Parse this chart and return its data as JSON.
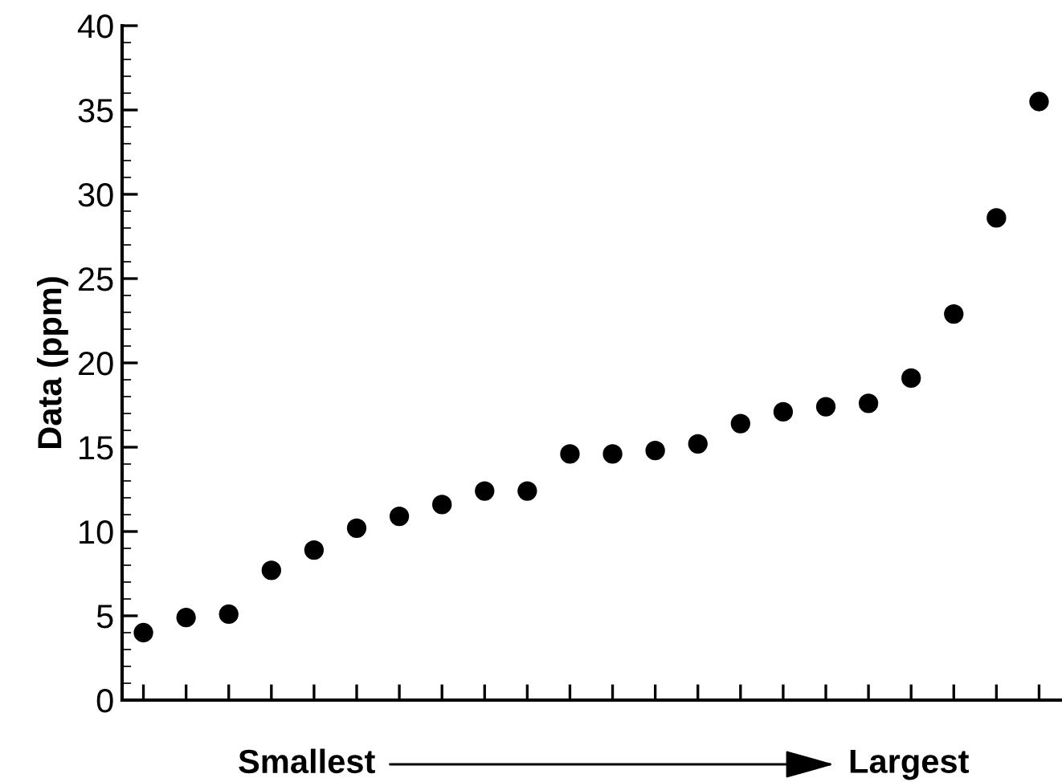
{
  "chart_data": {
    "type": "scatter",
    "ylabel": "Data (ppm)",
    "annotations": [
      "Smallest",
      "Largest"
    ],
    "categories": [
      null,
      null,
      null,
      null,
      null,
      null,
      null,
      null,
      null,
      null,
      null,
      null,
      null,
      null,
      null,
      null,
      null,
      null,
      null,
      null,
      null,
      null
    ],
    "series": [
      {
        "color": "#000000",
        "values": [
          4.0,
          4.9,
          5.1,
          7.7,
          8.9,
          10.2,
          10.9,
          11.6,
          12.4,
          12.4,
          14.6,
          14.6,
          14.8,
          15.2,
          16.4,
          17.1,
          17.4,
          17.6,
          19.1,
          22.9,
          28.6,
          35.5
        ]
      }
    ],
    "ylim": [
      0,
      40
    ],
    "yticks": [
      0,
      5,
      10,
      15,
      20,
      25,
      30,
      35,
      40
    ],
    "marker": "circle",
    "grid": false,
    "legend": false
  }
}
